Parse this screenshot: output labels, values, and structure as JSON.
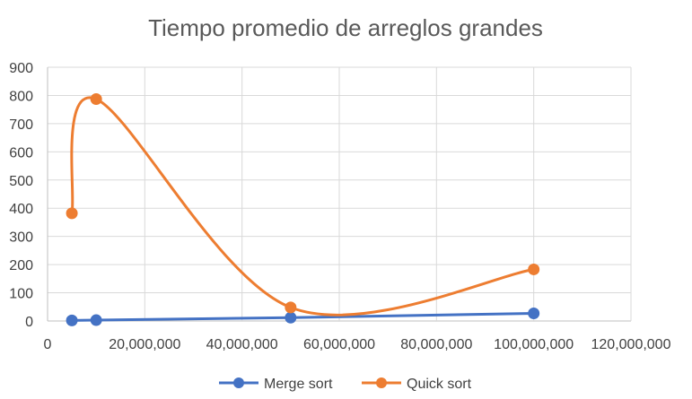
{
  "chart_data": {
    "type": "scatter",
    "title": "Tiempo promedio de arreglos grandes",
    "xlabel": "",
    "ylabel": "",
    "xlim": [
      0,
      120000000
    ],
    "ylim": [
      0,
      900
    ],
    "x_ticks": [
      "0",
      "20,000,000",
      "40,000,000",
      "60,000,000",
      "80,000,000",
      "100,000,000",
      "120,000,000"
    ],
    "y_ticks": [
      "0",
      "100",
      "200",
      "300",
      "400",
      "500",
      "600",
      "700",
      "800",
      "900"
    ],
    "grid": true,
    "legend_position": "bottom",
    "smooth_lines": true,
    "series": [
      {
        "name": "Merge sort",
        "color": "#4472C4",
        "smooth": false,
        "points": [
          [
            5000000,
            2
          ],
          [
            10000000,
            3
          ],
          [
            50000000,
            12
          ],
          [
            100000000,
            27
          ]
        ]
      },
      {
        "name": "Quick sort",
        "color": "#ED7D31",
        "smooth": true,
        "points": [
          [
            5000000,
            382
          ],
          [
            10000000,
            787
          ],
          [
            50000000,
            48
          ],
          [
            100000000,
            183
          ]
        ]
      }
    ]
  }
}
